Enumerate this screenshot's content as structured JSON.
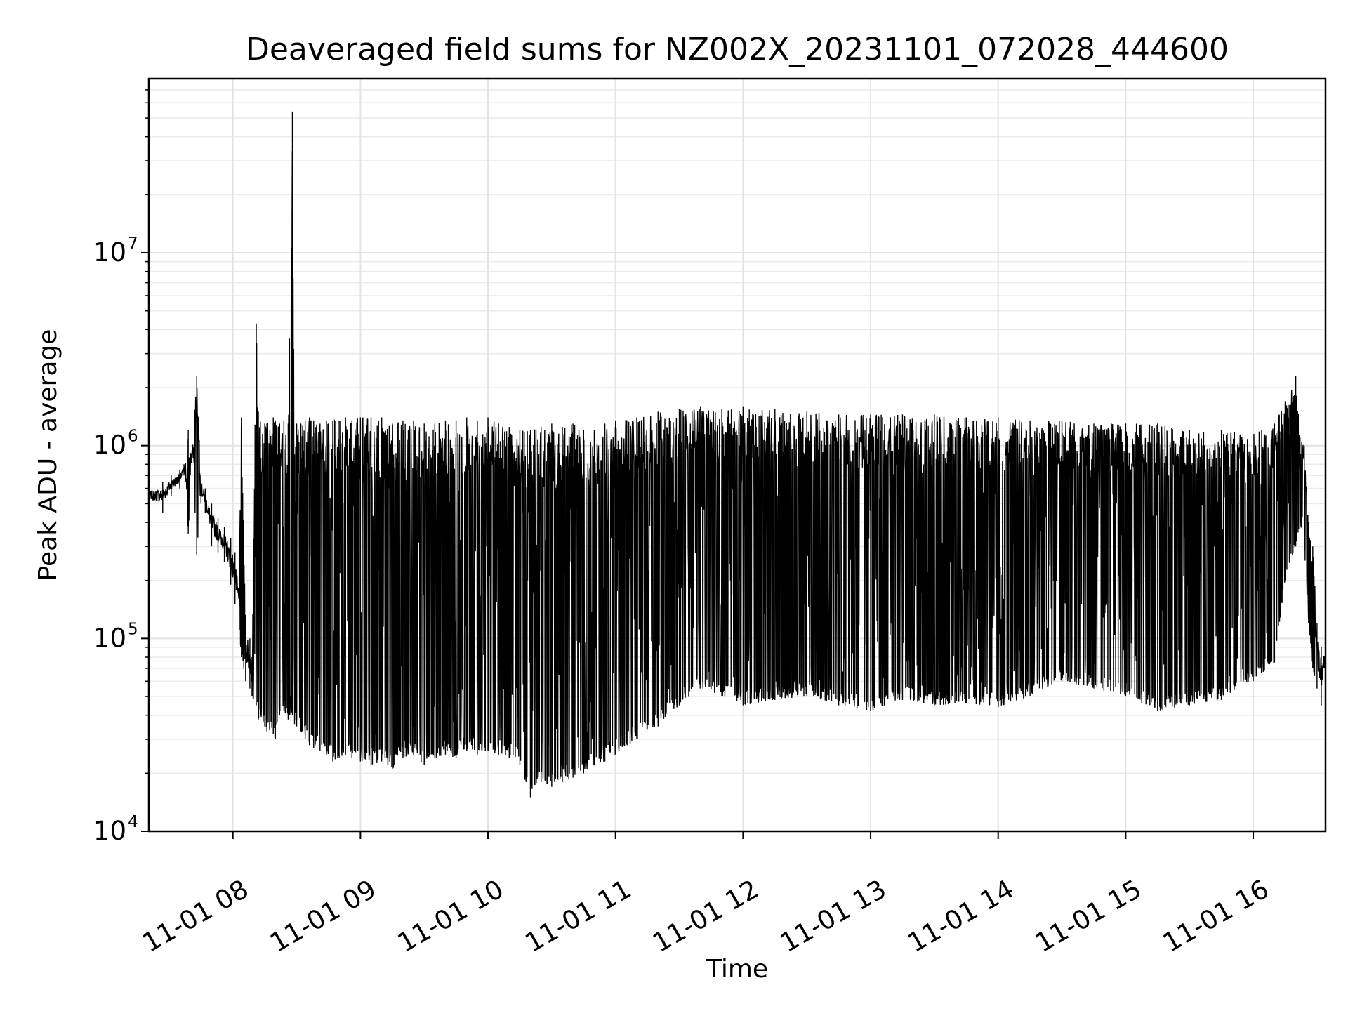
{
  "chart_data": {
    "type": "line",
    "title": "Deaveraged field sums for NZ002X_20231101_072028_444600",
    "xlabel": "Time",
    "ylabel": "Peak ADU - average",
    "y_scale": "log",
    "y_range": [
      10000,
      80000000
    ],
    "x_range": [
      "2023-11-01 07:20:28",
      "2023-11-01 16:34:00"
    ],
    "grid": true,
    "line_color": "#000000",
    "x_ticks": [
      {
        "label": "11-01 08",
        "value": "2023-11-01 08:00"
      },
      {
        "label": "11-01 09",
        "value": "2023-11-01 09:00"
      },
      {
        "label": "11-01 10",
        "value": "2023-11-01 10:00"
      },
      {
        "label": "11-01 11",
        "value": "2023-11-01 11:00"
      },
      {
        "label": "11-01 12",
        "value": "2023-11-01 12:00"
      },
      {
        "label": "11-01 13",
        "value": "2023-11-01 13:00"
      },
      {
        "label": "11-01 14",
        "value": "2023-11-01 14:00"
      },
      {
        "label": "11-01 15",
        "value": "2023-11-01 15:00"
      },
      {
        "label": "11-01 16",
        "value": "2023-11-01 16:00"
      }
    ],
    "y_ticks": [
      {
        "base": "10",
        "exp": "4",
        "value": 10000
      },
      {
        "base": "10",
        "exp": "5",
        "value": 100000
      },
      {
        "base": "10",
        "exp": "6",
        "value": 1000000
      },
      {
        "base": "10",
        "exp": "7",
        "value": 10000000
      }
    ],
    "series": [
      {
        "x": [
          "2023-11-01 07:20:28",
          "2023-11-01 07:27",
          "2023-11-01 07:31",
          "2023-11-01 07:35",
          "2023-11-01 07:37",
          "2023-11-01 07:39",
          "2023-11-01 07:41",
          "2023-11-01 07:43",
          "2023-11-01 07:45",
          "2023-11-01 07:47",
          "2023-11-01 07:50",
          "2023-11-01 07:53",
          "2023-11-01 07:56",
          "2023-11-01 07:59",
          "2023-11-01 08:01",
          "2023-11-01 08:03",
          "2023-11-01 08:04",
          "2023-11-01 08:06",
          "2023-11-01 08:08",
          "2023-11-01 08:09",
          "2023-11-01 08:11",
          "2023-11-01 08:12",
          "2023-11-01 08:15",
          "2023-11-01 08:16",
          "2023-11-01 08:19",
          "2023-11-01 08:20",
          "2023-11-01 08:22",
          "2023-11-01 08:24",
          "2023-11-01 08:26",
          "2023-11-01 08:28",
          "2023-11-01 08:29",
          "2023-11-01 08:30",
          "2023-11-01 08:32",
          "2023-11-01 08:34",
          "2023-11-01 08:36",
          "2023-11-01 08:38",
          "2023-11-01 08:41",
          "2023-11-01 08:44",
          "2023-11-01 08:47",
          "2023-11-01 08:50",
          "2023-11-01 08:53",
          "2023-11-01 08:56",
          "2023-11-01 09:00",
          "2023-11-01 09:05",
          "2023-11-01 09:10",
          "2023-11-01 09:15",
          "2023-11-01 09:20",
          "2023-11-01 09:25",
          "2023-11-01 09:30",
          "2023-11-01 09:35",
          "2023-11-01 09:40",
          "2023-11-01 09:45",
          "2023-11-01 09:50",
          "2023-11-01 09:55",
          "2023-11-01 10:00",
          "2023-11-01 10:05",
          "2023-11-01 10:10",
          "2023-11-01 10:15",
          "2023-11-01 10:20",
          "2023-11-01 10:25",
          "2023-11-01 10:30",
          "2023-11-01 10:35",
          "2023-11-01 10:40",
          "2023-11-01 10:45",
          "2023-11-01 10:50",
          "2023-11-01 10:55",
          "2023-11-01 11:00",
          "2023-11-01 11:10",
          "2023-11-01 11:20",
          "2023-11-01 11:30",
          "2023-11-01 11:40",
          "2023-11-01 11:50",
          "2023-11-01 12:00",
          "2023-11-01 12:15",
          "2023-11-01 12:30",
          "2023-11-01 12:45",
          "2023-11-01 13:00",
          "2023-11-01 13:15",
          "2023-11-01 13:30",
          "2023-11-01 13:45",
          "2023-11-01 14:00",
          "2023-11-01 14:15",
          "2023-11-01 14:30",
          "2023-11-01 14:45",
          "2023-11-01 15:00",
          "2023-11-01 15:15",
          "2023-11-01 15:30",
          "2023-11-01 15:45",
          "2023-11-01 16:00",
          "2023-11-01 16:10",
          "2023-11-01 16:15",
          "2023-11-01 16:20",
          "2023-11-01 16:22",
          "2023-11-01 16:24",
          "2023-11-01 16:26",
          "2023-11-01 16:28",
          "2023-11-01 16:30",
          "2023-11-01 16:32",
          "2023-11-01 16:34"
        ],
        "upper": [
          600000,
          650000,
          700000,
          750000,
          800000,
          1200000,
          1000000,
          2300000,
          700000,
          600000,
          500000,
          420000,
          380000,
          330000,
          280000,
          200000,
          1400000,
          130000,
          100000,
          80000,
          4300000,
          1500000,
          1300000,
          1300000,
          1400000,
          1350000,
          1300000,
          1350000,
          1300000,
          54000000,
          900000,
          1300000,
          1300000,
          1350000,
          1400000,
          1350000,
          1300000,
          1350000,
          1350000,
          1350000,
          1400000,
          1350000,
          1400000,
          1400000,
          1400000,
          1300000,
          1350000,
          1350000,
          1300000,
          1300000,
          1350000,
          1350000,
          1400000,
          1350000,
          1400000,
          1300000,
          1250000,
          1200000,
          1200000,
          1250000,
          1300000,
          1250000,
          1300000,
          1200000,
          1200000,
          1300000,
          1350000,
          1400000,
          1500000,
          1550000,
          1600000,
          1550000,
          1600000,
          1550000,
          1500000,
          1450000,
          1450000,
          1450000,
          1450000,
          1400000,
          1400000,
          1350000,
          1350000,
          1300000,
          1300000,
          1300000,
          1200000,
          1200000,
          1150000,
          1300000,
          1700000,
          2300000,
          1100000,
          1000000,
          400000,
          300000,
          120000,
          90000,
          90000
        ],
        "lower": [
          500000,
          450000,
          550000,
          600000,
          700000,
          350000,
          900000,
          270000,
          500000,
          450000,
          300000,
          280000,
          250000,
          190000,
          150000,
          110000,
          80000,
          60000,
          55000,
          50000,
          45000,
          38000,
          35000,
          33000,
          32000,
          30000,
          40000,
          42000,
          38000,
          40000,
          36000,
          35000,
          33000,
          30000,
          28000,
          27000,
          26000,
          25000,
          23000,
          24000,
          25000,
          24000,
          23000,
          22000,
          23000,
          21000,
          24000,
          25000,
          22000,
          24000,
          25000,
          24000,
          26000,
          25000,
          26000,
          25000,
          24000,
          22000,
          15000,
          18000,
          17000,
          18000,
          19000,
          20000,
          22000,
          23000,
          25000,
          30000,
          35000,
          45000,
          55000,
          50000,
          45000,
          48000,
          50000,
          45000,
          42000,
          48000,
          45000,
          46000,
          44000,
          50000,
          60000,
          55000,
          50000,
          42000,
          45000,
          48000,
          60000,
          75000,
          200000,
          300000,
          400000,
          300000,
          120000,
          70000,
          55000,
          45000,
          60000
        ]
      }
    ]
  }
}
